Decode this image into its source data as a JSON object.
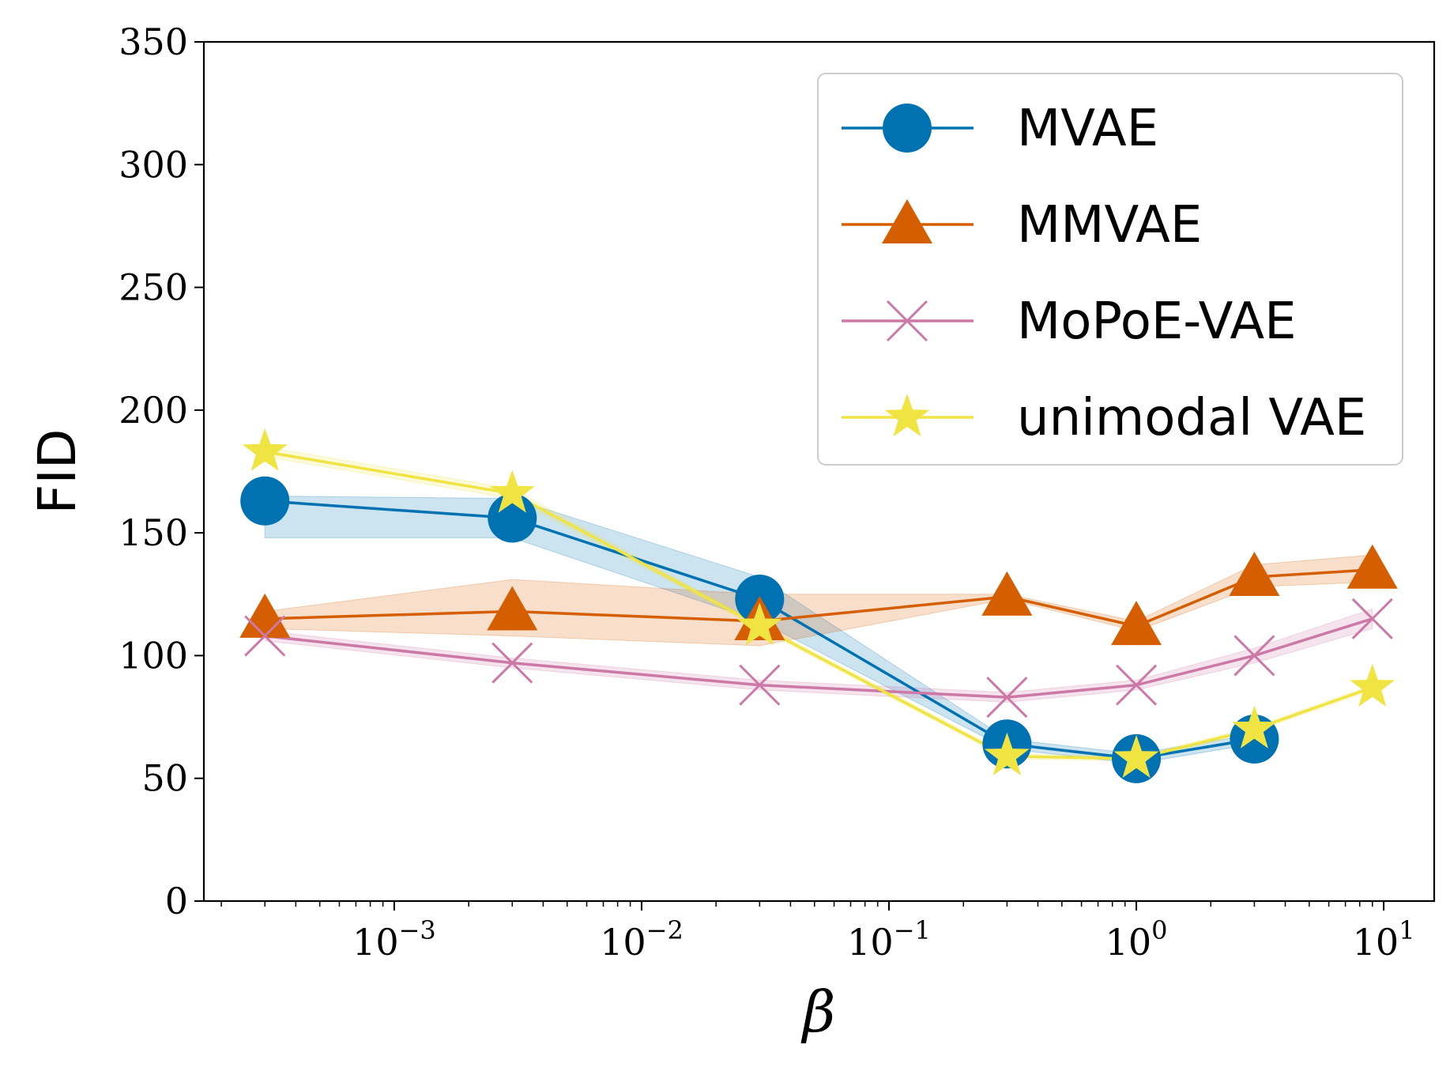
{
  "chart_data": {
    "type": "line",
    "title": "",
    "xlabel": "β",
    "ylabel": "FID",
    "xscale": "log",
    "xlim": [
      0.00017,
      16
    ],
    "ylim": [
      0,
      350
    ],
    "x": [
      0.0003,
      0.003,
      0.03,
      0.3,
      1,
      3,
      9
    ],
    "y_ticks": [
      "0",
      "50",
      "100",
      "150",
      "200",
      "250",
      "300",
      "350"
    ],
    "y_tick_values": [
      0,
      50,
      100,
      150,
      200,
      250,
      300,
      350
    ],
    "x_ticks": [
      {
        "value": 0.001,
        "base": "10",
        "exp": "−3"
      },
      {
        "value": 0.01,
        "base": "10",
        "exp": "−2"
      },
      {
        "value": 0.1,
        "base": "10",
        "exp": "−1"
      },
      {
        "value": 1,
        "base": "10",
        "exp": "0"
      },
      {
        "value": 10,
        "base": "10",
        "exp": "1"
      }
    ],
    "legend_position": "top-right",
    "series": [
      {
        "name": "MVAE",
        "color": "#0072b2",
        "marker": "circle",
        "values": [
          163,
          156,
          123,
          64,
          58,
          66,
          null
        ],
        "band_upper": [
          165,
          164,
          132,
          66,
          60,
          68,
          null
        ],
        "band_lower": [
          148,
          148,
          114,
          62,
          56,
          64,
          null
        ]
      },
      {
        "name": "MMVAE",
        "color": "#d55e00",
        "marker": "triangle",
        "values": [
          115,
          118,
          114,
          124,
          112,
          132,
          135
        ],
        "band_upper": [
          118,
          131,
          125,
          125,
          114,
          137,
          141
        ],
        "band_lower": [
          111,
          108,
          104,
          123,
          110,
          128,
          130
        ]
      },
      {
        "name": "MoPoE-VAE",
        "color": "#cc79a7",
        "marker": "x",
        "values": [
          108,
          97,
          88,
          83,
          88,
          100,
          115
        ],
        "band_upper": [
          110,
          99,
          90,
          85,
          90,
          103,
          119
        ],
        "band_lower": [
          106,
          95,
          86,
          81,
          86,
          97,
          111
        ]
      },
      {
        "name": "unimodal VAE",
        "color": "#f0e442",
        "marker": "star",
        "values": [
          183,
          166,
          112,
          59,
          58,
          70,
          87
        ],
        "band_upper": [
          185,
          168,
          113,
          60,
          59,
          71,
          88
        ],
        "band_lower": [
          181,
          164,
          111,
          58,
          57,
          69,
          86
        ]
      }
    ]
  }
}
